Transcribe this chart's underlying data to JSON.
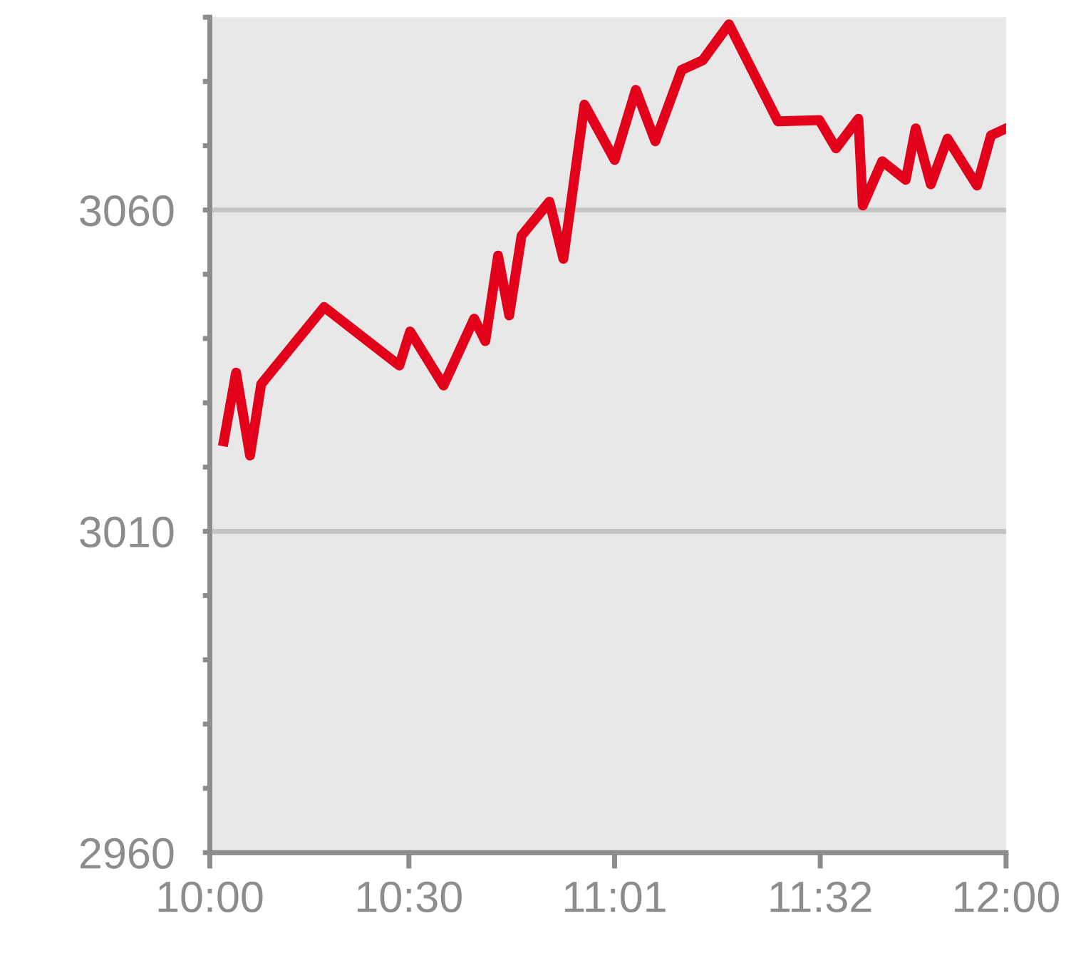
{
  "chart_data": {
    "type": "line",
    "x": [
      10.035,
      10.066,
      10.101,
      10.129,
      10.287,
      10.476,
      10.503,
      10.587,
      10.664,
      10.692,
      10.724,
      10.752,
      10.783,
      10.853,
      10.888,
      10.941,
      11.017,
      11.07,
      11.119,
      11.185,
      11.238,
      11.304,
      11.427,
      11.531,
      11.573,
      11.629,
      11.64,
      11.689,
      11.748,
      11.773,
      11.811,
      11.853,
      11.927,
      11.962,
      12.0
    ],
    "series": [
      {
        "color": "#e2001a",
        "values": [
          3024,
          3034.7,
          3021.8,
          3032.9,
          3044.9,
          3035.8,
          3041.1,
          3032.7,
          3043.1,
          3039.6,
          3052.9,
          3043.6,
          3056,
          3061.3,
          3052.4,
          3076.4,
          3067.8,
          3078.7,
          3070.7,
          3081.8,
          3083.3,
          3088.9,
          3073.8,
          3074,
          3069.6,
          3074.2,
          3060.7,
          3067.6,
          3064.7,
          3072.7,
          3064,
          3071.1,
          3063.8,
          3071.6,
          3072.7
        ]
      }
    ],
    "xlim": [
      10.0,
      12.0
    ],
    "xticks": [
      {
        "value": 10.0,
        "label": "10:00"
      },
      {
        "value": 10.5,
        "label": "10:30"
      },
      {
        "value": 11.0167,
        "label": "11:01"
      },
      {
        "value": 11.5333,
        "label": "11:32"
      },
      {
        "value": 12.0,
        "label": "12:00"
      }
    ],
    "ylim": [
      2960,
      3090
    ],
    "yticks": [
      2960,
      {
        "value": 2970,
        "label": null
      },
      {
        "value": 2980,
        "label": null
      },
      {
        "value": 2990,
        "label": null
      },
      {
        "value": 3000,
        "label": null
      },
      3010,
      {
        "value": 3020,
        "label": null
      },
      {
        "value": 3030,
        "label": null
      },
      {
        "value": 3040,
        "label": null
      },
      {
        "value": 3050,
        "label": null
      },
      3060,
      {
        "value": 3070,
        "label": null
      },
      {
        "value": 3080,
        "label": null
      },
      {
        "value": 3090,
        "label": null
      }
    ],
    "grid": "y",
    "marker": "none",
    "line_style": "solid",
    "legend": false
  }
}
